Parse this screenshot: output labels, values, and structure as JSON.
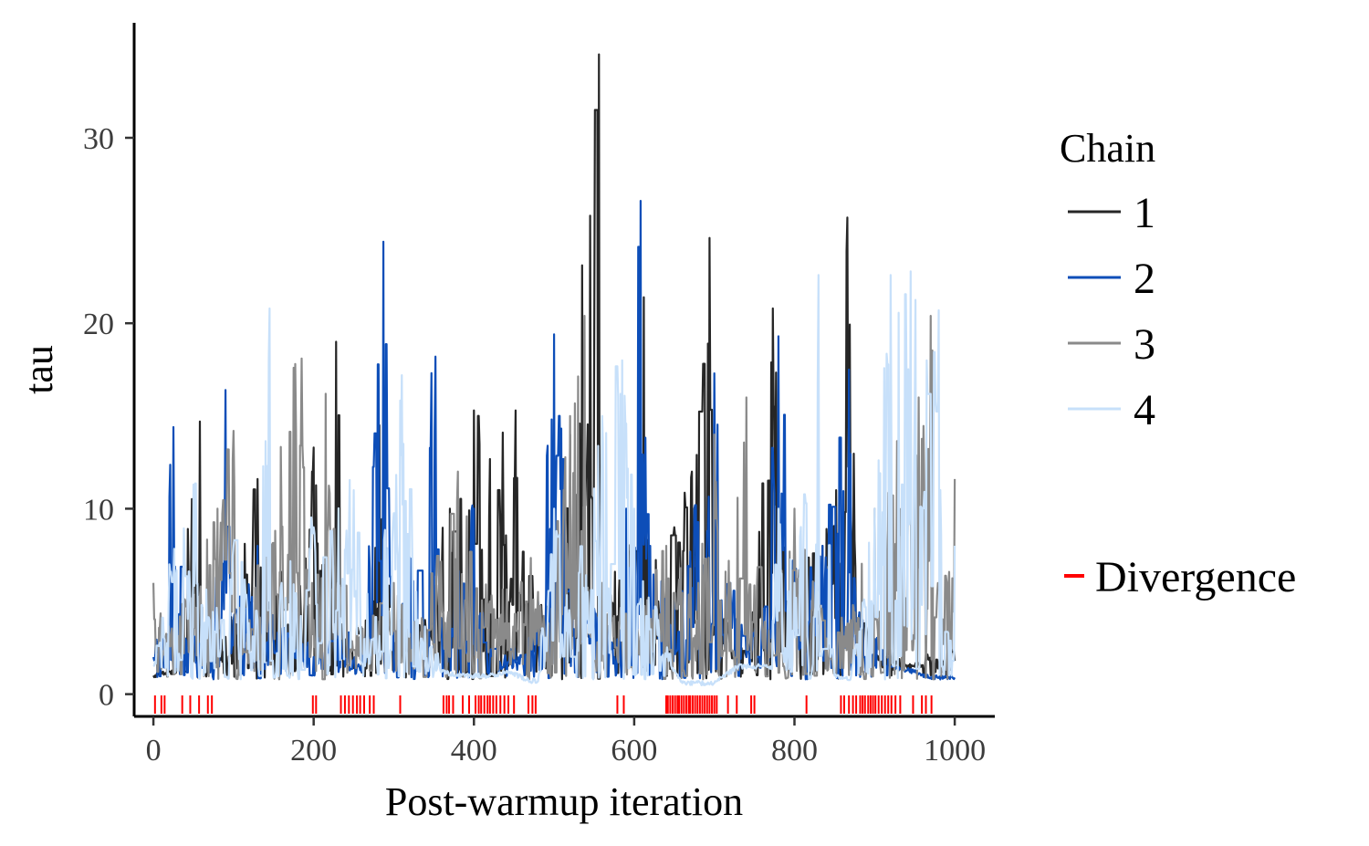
{
  "chart_data": {
    "type": "line",
    "xlabel": "Post-warmup iteration",
    "ylabel": "tau",
    "xlim": [
      -24,
      1050
    ],
    "ylim": [
      -1.2,
      36.2
    ],
    "x_ticks": [
      0,
      200,
      400,
      600,
      800,
      1000
    ],
    "y_ticks": [
      0,
      10,
      20,
      30
    ],
    "grid": false,
    "legend_position": "right",
    "legend": {
      "title": "Chain",
      "divergence_label": "Divergence",
      "divergence_color": "#ff0000"
    },
    "n_iterations": 1000,
    "series": [
      {
        "name": "1",
        "color": "#262626",
        "keypoints": [
          [
            0,
            1.0
          ],
          [
            10,
            1.1
          ],
          [
            25,
            1.2
          ],
          [
            58,
            14.7
          ],
          [
            60,
            2.0
          ],
          [
            100,
            4.0
          ],
          [
            130,
            11.6
          ],
          [
            175,
            3.0
          ],
          [
            200,
            13.3
          ],
          [
            215,
            4.0
          ],
          [
            228,
            19.0
          ],
          [
            240,
            2.0
          ],
          [
            275,
            5.0
          ],
          [
            282,
            14.5
          ],
          [
            300,
            2.0
          ],
          [
            345,
            5.0
          ],
          [
            370,
            10.0
          ],
          [
            400,
            15.3
          ],
          [
            452,
            15.3
          ],
          [
            475,
            4.0
          ],
          [
            500,
            5.0
          ],
          [
            520,
            14.0
          ],
          [
            556,
            34.5
          ],
          [
            560,
            5.0
          ],
          [
            600,
            8.0
          ],
          [
            612,
            21.4
          ],
          [
            630,
            5.0
          ],
          [
            650,
            9.0
          ],
          [
            672,
            12.0
          ],
          [
            694,
            24.6
          ],
          [
            710,
            4.0
          ],
          [
            740,
            2.0
          ],
          [
            773,
            20.8
          ],
          [
            790,
            5.0
          ],
          [
            835,
            8.0
          ],
          [
            852,
            11.0
          ],
          [
            866,
            25.7
          ],
          [
            880,
            4.0
          ],
          [
            900,
            2.0
          ],
          [
            940,
            1.5
          ],
          [
            1000,
            1.8
          ]
        ]
      },
      {
        "name": "2",
        "color": "#0d4eb8",
        "keypoints": [
          [
            0,
            2.0
          ],
          [
            10,
            4.0
          ],
          [
            25,
            14.4
          ],
          [
            40,
            3.0
          ],
          [
            60,
            2.0
          ],
          [
            90,
            16.4
          ],
          [
            100,
            4.0
          ],
          [
            130,
            8.0
          ],
          [
            150,
            3.0
          ],
          [
            175,
            3.0
          ],
          [
            200,
            2.0
          ],
          [
            230,
            4.0
          ],
          [
            260,
            1.2
          ],
          [
            287,
            24.4
          ],
          [
            300,
            1.2
          ],
          [
            352,
            18.2
          ],
          [
            360,
            3.0
          ],
          [
            400,
            10.0
          ],
          [
            420,
            2.0
          ],
          [
            460,
            2.0
          ],
          [
            480,
            5.0
          ],
          [
            500,
            19.4
          ],
          [
            520,
            7.0
          ],
          [
            560,
            4.0
          ],
          [
            575,
            2.0
          ],
          [
            590,
            10.0
          ],
          [
            608,
            26.6
          ],
          [
            620,
            8.0
          ],
          [
            650,
            5.0
          ],
          [
            675,
            10.0
          ],
          [
            700,
            17.3
          ],
          [
            720,
            6.0
          ],
          [
            740,
            2.0
          ],
          [
            760,
            4.0
          ],
          [
            780,
            19.3
          ],
          [
            800,
            6.0
          ],
          [
            835,
            8.0
          ],
          [
            868,
            17.5
          ],
          [
            880,
            4.0
          ],
          [
            920,
            1.5
          ],
          [
            950,
            1.2
          ],
          [
            970,
            0.9
          ],
          [
            1000,
            0.9
          ]
        ]
      },
      {
        "name": "3",
        "color": "#8a8a8a",
        "keypoints": [
          [
            0,
            6.0
          ],
          [
            20,
            3.0
          ],
          [
            40,
            5.0
          ],
          [
            80,
            10.0
          ],
          [
            100,
            14.2
          ],
          [
            120,
            4.0
          ],
          [
            175,
            17.6
          ],
          [
            185,
            18.1
          ],
          [
            200,
            4.0
          ],
          [
            215,
            16.2
          ],
          [
            230,
            6.0
          ],
          [
            260,
            3.0
          ],
          [
            300,
            6.0
          ],
          [
            330,
            3.0
          ],
          [
            380,
            12.0
          ],
          [
            420,
            5.0
          ],
          [
            460,
            6.0
          ],
          [
            500,
            8.0
          ],
          [
            520,
            15.0
          ],
          [
            538,
            20.4
          ],
          [
            560,
            6.0
          ],
          [
            600,
            3.0
          ],
          [
            640,
            8.0
          ],
          [
            680,
            6.0
          ],
          [
            700,
            14.0
          ],
          [
            720,
            6.0
          ],
          [
            740,
            16.0
          ],
          [
            760,
            3.0
          ],
          [
            800,
            10.0
          ],
          [
            840,
            3.0
          ],
          [
            870,
            4.0
          ],
          [
            900,
            10.0
          ],
          [
            955,
            16.0
          ],
          [
            970,
            20.4
          ],
          [
            990,
            6.0
          ],
          [
            1000,
            11.6
          ]
        ]
      },
      {
        "name": "4",
        "color": "#c7e0fa",
        "keypoints": [
          [
            0,
            1.5
          ],
          [
            20,
            7.0
          ],
          [
            50,
            11.3
          ],
          [
            70,
            4.0
          ],
          [
            100,
            8.0
          ],
          [
            130,
            4.0
          ],
          [
            145,
            20.8
          ],
          [
            160,
            6.0
          ],
          [
            200,
            9.0
          ],
          [
            250,
            11.0
          ],
          [
            275,
            3.0
          ],
          [
            310,
            17.2
          ],
          [
            330,
            4.0
          ],
          [
            360,
            1.2
          ],
          [
            380,
            1.0
          ],
          [
            420,
            1.0
          ],
          [
            445,
            1.2
          ],
          [
            470,
            0.7
          ],
          [
            480,
            0.7
          ],
          [
            500,
            10.0
          ],
          [
            520,
            4.0
          ],
          [
            560,
            15.0
          ],
          [
            585,
            18.0
          ],
          [
            600,
            10.0
          ],
          [
            630,
            4.0
          ],
          [
            640,
            2.0
          ],
          [
            660,
            0.6
          ],
          [
            700,
            0.6
          ],
          [
            730,
            1.5
          ],
          [
            770,
            1.5
          ],
          [
            780,
            10.0
          ],
          [
            800,
            6.0
          ],
          [
            830,
            22.6
          ],
          [
            850,
            1.0
          ],
          [
            870,
            0.8
          ],
          [
            900,
            10.0
          ],
          [
            920,
            22.6
          ],
          [
            945,
            22.8
          ],
          [
            965,
            18.0
          ],
          [
            980,
            20.7
          ],
          [
            1000,
            8.0
          ]
        ]
      }
    ],
    "divergences": [
      2,
      10,
      14,
      36,
      46,
      57,
      68,
      73,
      199,
      203,
      234,
      239,
      244,
      249,
      254,
      258,
      263,
      270,
      275,
      308,
      362,
      366,
      369,
      374,
      386,
      394,
      402,
      406,
      409,
      413,
      417,
      420,
      424,
      428,
      433,
      438,
      443,
      450,
      468,
      473,
      477,
      579,
      587,
      640,
      642,
      645,
      648,
      651,
      654,
      656,
      659,
      662,
      665,
      668,
      670,
      673,
      676,
      679,
      682,
      685,
      688,
      691,
      694,
      697,
      700,
      703,
      717,
      728,
      746,
      750,
      815,
      858,
      862,
      868,
      873,
      877,
      882,
      885,
      888,
      892,
      895,
      898,
      901,
      905,
      909,
      913,
      917,
      921,
      926,
      932,
      948,
      959,
      964,
      971
    ]
  }
}
